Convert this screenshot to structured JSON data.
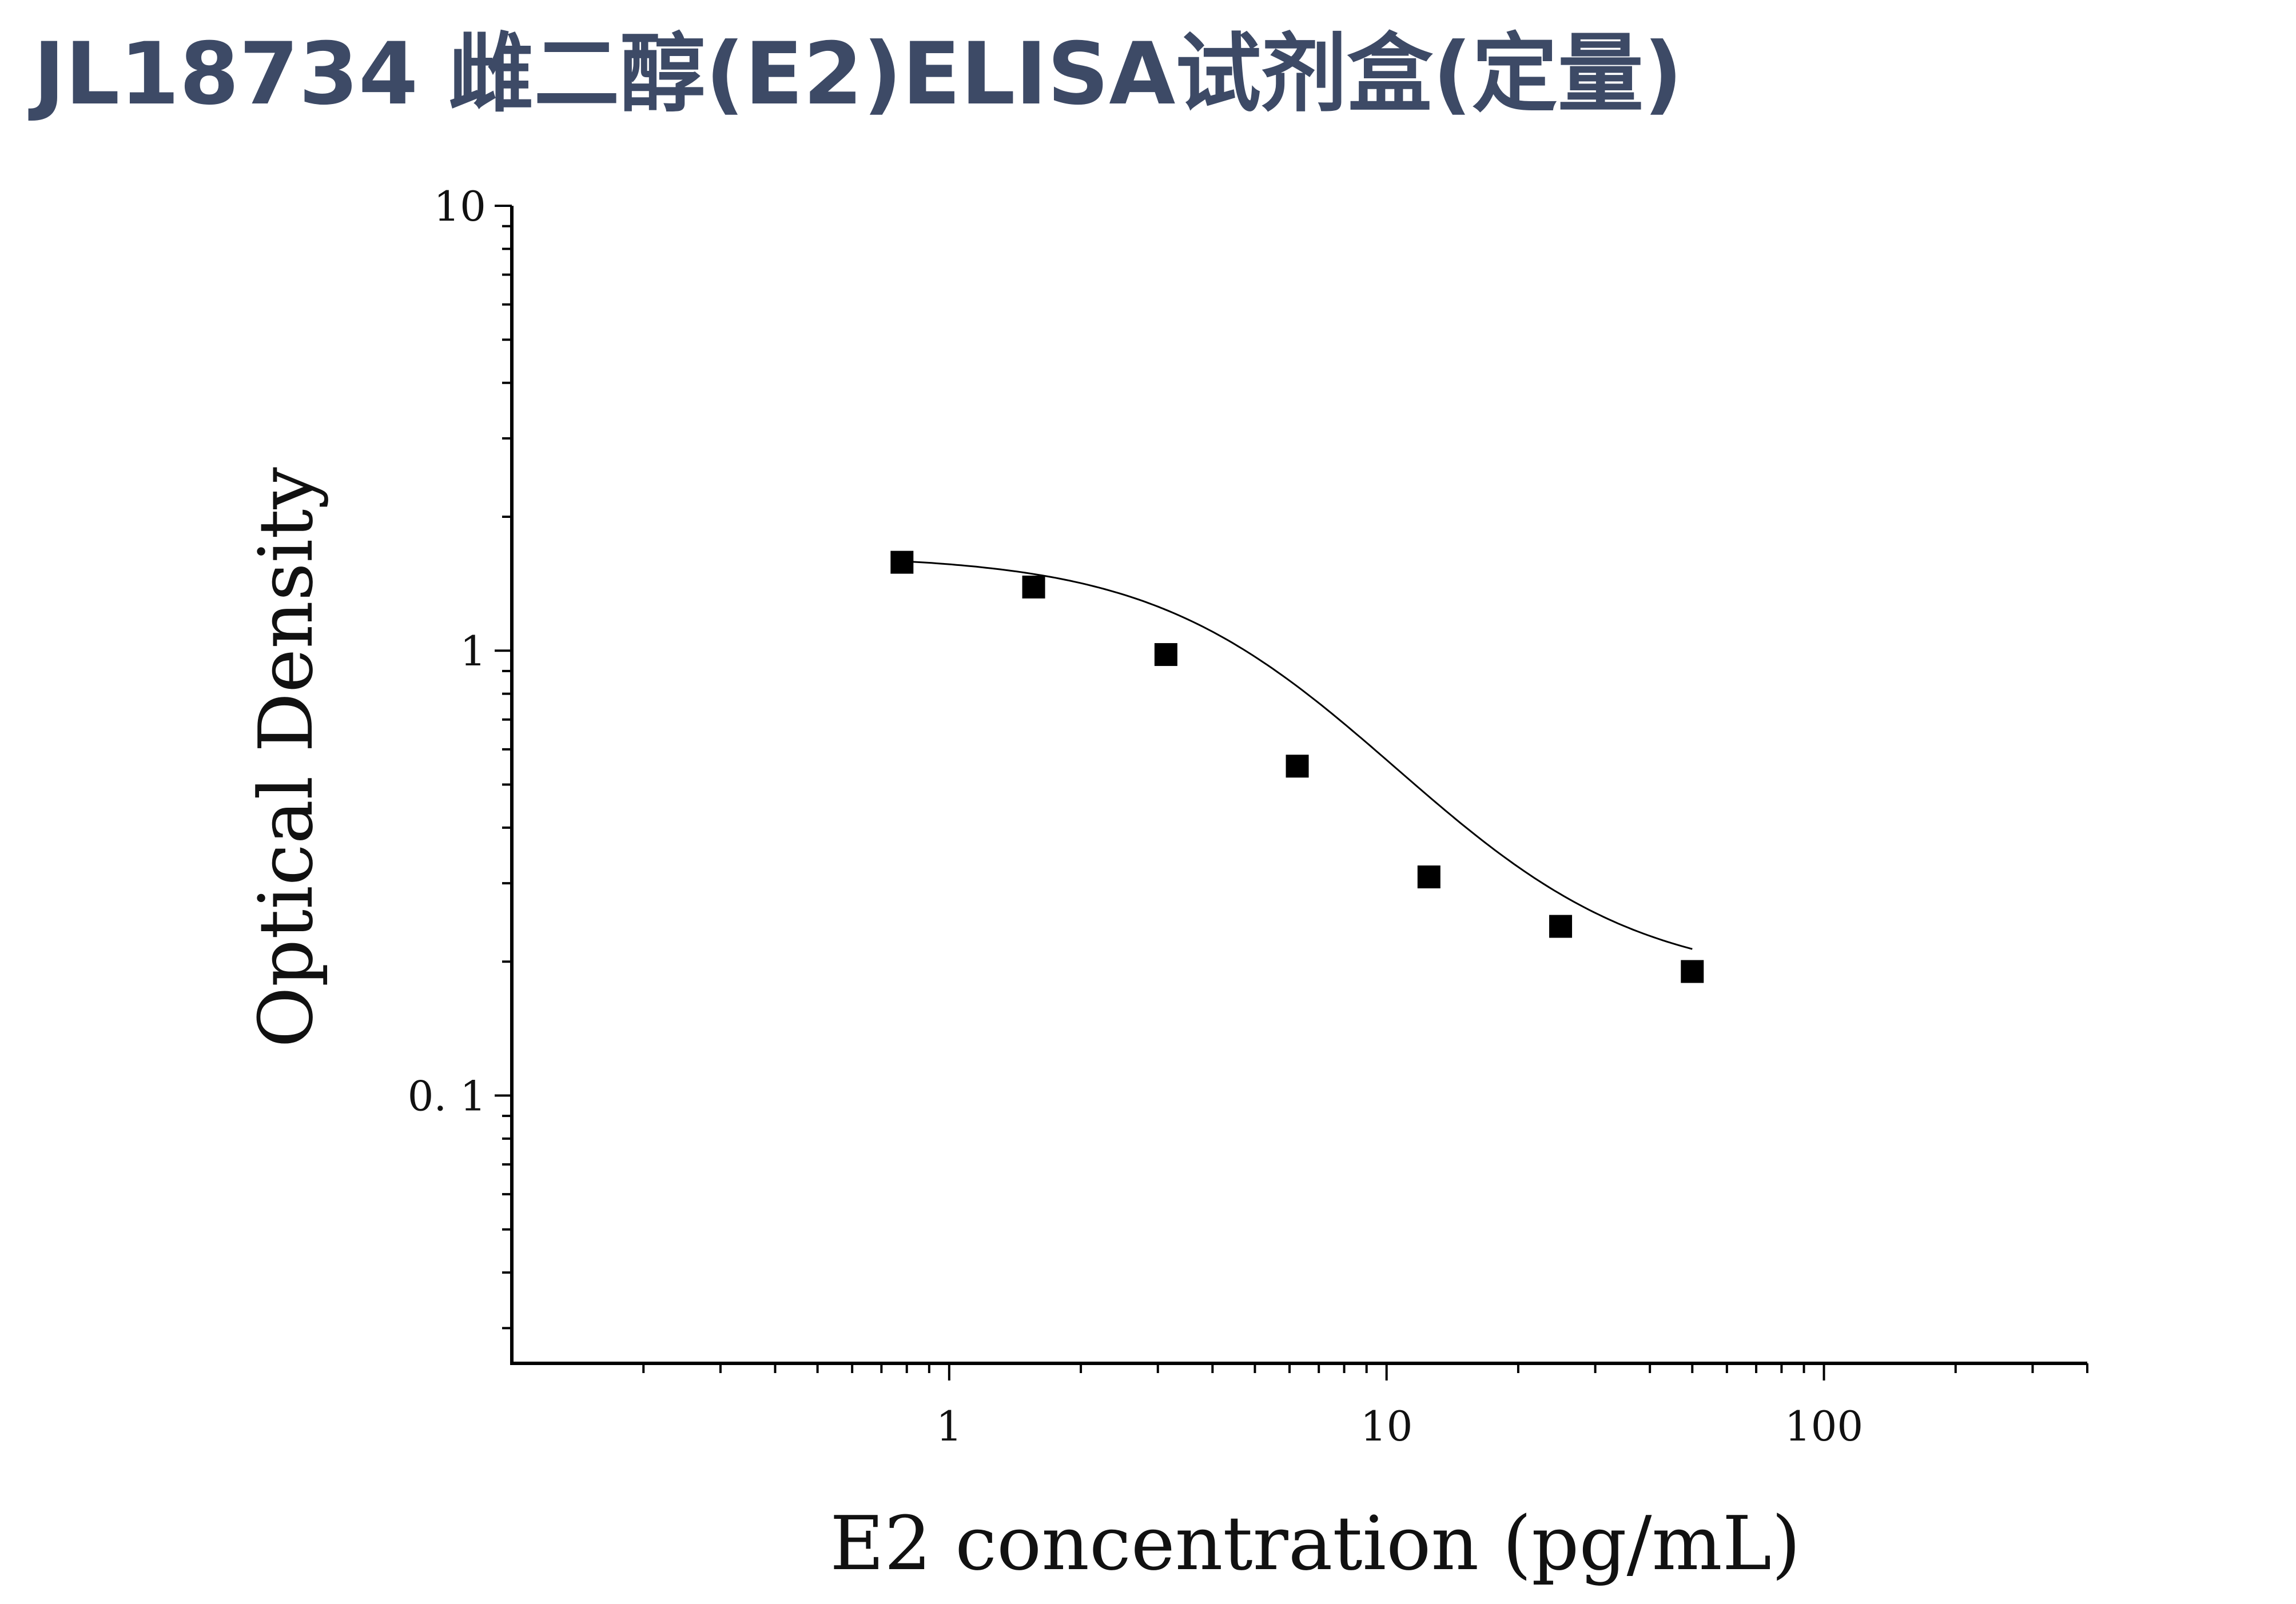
{
  "title": "JL18734 雌二醇(E2)ELISA试剂盒(定量)",
  "colors": {
    "title": "#3d4a66",
    "marker": "#000000",
    "curve": "#000000",
    "axis": "#000000"
  },
  "chart_data": {
    "type": "scatter",
    "xlabel": "E2 concentration (pg/mL)",
    "ylabel": "Optical Density",
    "xscale": "log",
    "yscale": "log",
    "xlim": [
      0.1,
      400
    ],
    "ylim": [
      0.025,
      10
    ],
    "x_ticks": [
      {
        "value": 1,
        "label": "1"
      },
      {
        "value": 10,
        "label": "10"
      },
      {
        "value": 100,
        "label": "100"
      }
    ],
    "y_ticks": [
      {
        "value": 0.1,
        "label": "0. 1"
      },
      {
        "value": 1,
        "label": "1"
      },
      {
        "value": 10,
        "label": "10"
      }
    ],
    "grid": false,
    "series": [
      {
        "marker": "square",
        "points": [
          {
            "x": 0.78,
            "y": 1.58
          },
          {
            "x": 1.56,
            "y": 1.39
          },
          {
            "x": 3.13,
            "y": 0.98
          },
          {
            "x": 6.25,
            "y": 0.55
          },
          {
            "x": 12.5,
            "y": 0.31
          },
          {
            "x": 25,
            "y": 0.24
          },
          {
            "x": 50,
            "y": 0.19
          }
        ]
      }
    ],
    "fit": {
      "type": "4PL",
      "A": 1.64,
      "B": 1.7,
      "C": 5.5,
      "D": 0.18
    }
  }
}
